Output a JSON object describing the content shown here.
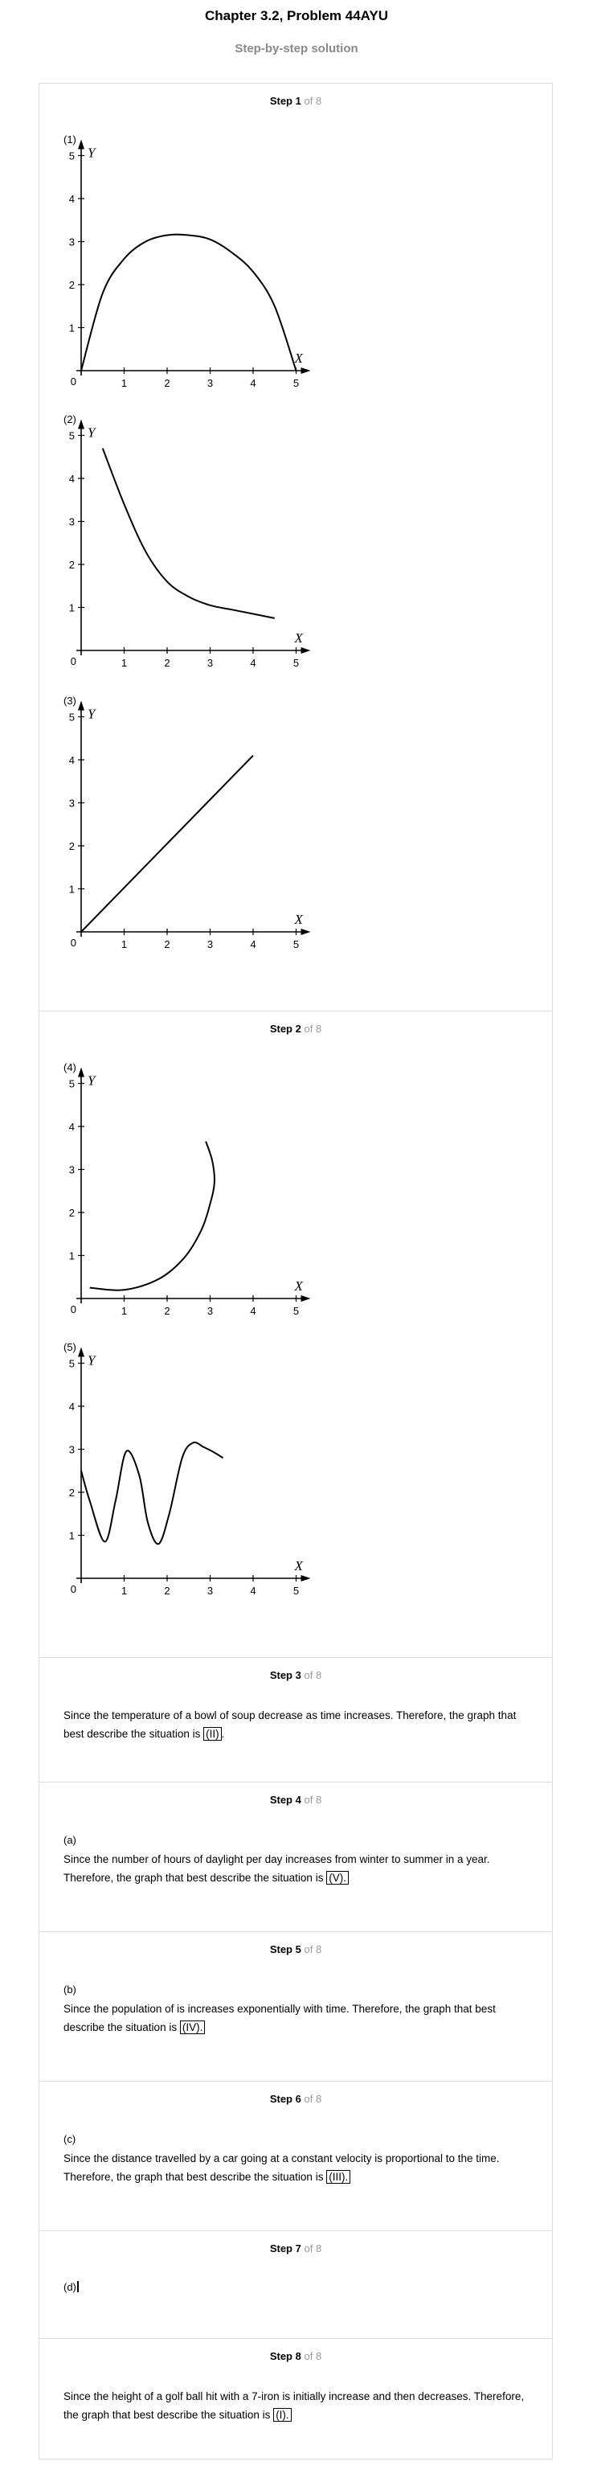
{
  "header": {
    "title": "Chapter 3.2, Problem 44AYU",
    "subtitle": "Step-by-step solution"
  },
  "step_word": "Step",
  "of_text": "of 8",
  "axis": {
    "x_label": "X",
    "y_label": "Y",
    "ticks": [
      "1",
      "2",
      "3",
      "4",
      "5"
    ],
    "origin": "0"
  },
  "steps": [
    {
      "num": "1",
      "graph_tags": [
        "(1)",
        "(2)",
        "(3)"
      ]
    },
    {
      "num": "2",
      "graph_tags": [
        "(4)",
        "(5)"
      ]
    },
    {
      "num": "3",
      "text": "Since the temperature of a bowl of soup decrease as time increases. Therefore, the graph that best describe the situation is",
      "answer": "(II)",
      "end": "."
    },
    {
      "num": "4",
      "tag": "(a)",
      "text": "Since the number of hours of daylight per day increases from winter to summer in a year. Therefore, the graph that best describe the situation is",
      "answer": "(V).",
      "end": ""
    },
    {
      "num": "5",
      "tag": "(b)",
      "text": "Since the population of is increases exponentially with time. Therefore, the graph that best describe the situation is",
      "answer": "(IV).",
      "end": ""
    },
    {
      "num": "6",
      "tag": "(c)",
      "text": "Since the distance travelled by a car going at a constant velocity is proportional to the time. Therefore, the graph that best describe the situation is",
      "answer": "(III).",
      "end": ""
    },
    {
      "num": "7",
      "tag": "(d)"
    },
    {
      "num": "8",
      "text": "Since the height of a golf ball hit with a 7-iron is initially increase and then decreases. Therefore, the graph that best describe the situation is",
      "answer": "(I).",
      "end": ""
    }
  ],
  "chart_data": [
    {
      "type": "line",
      "label": "(1)",
      "shape": "semicircle arch",
      "x": [
        0,
        0.5,
        1,
        1.5,
        2,
        2.5,
        3,
        3.5,
        4,
        4.5,
        5
      ],
      "y": [
        0,
        1.8,
        2.6,
        3.0,
        3.15,
        3.15,
        3.05,
        2.75,
        2.3,
        1.5,
        0
      ],
      "xlim": [
        0,
        5
      ],
      "ylim": [
        0,
        5
      ]
    },
    {
      "type": "line",
      "label": "(2)",
      "shape": "decreasing curve",
      "x": [
        0.5,
        1,
        1.5,
        2,
        2.5,
        3,
        3.5,
        4,
        4.5
      ],
      "y": [
        4.7,
        3.4,
        2.3,
        1.6,
        1.25,
        1.05,
        0.95,
        0.85,
        0.75
      ],
      "xlim": [
        0,
        5
      ],
      "ylim": [
        0,
        5
      ]
    },
    {
      "type": "line",
      "label": "(3)",
      "shape": "straight line through origin",
      "x": [
        0,
        4
      ],
      "y": [
        0,
        4.1
      ],
      "xlim": [
        0,
        5
      ],
      "ylim": [
        0,
        5
      ]
    },
    {
      "type": "line",
      "label": "(4)",
      "shape": "curve turning upward",
      "x": [
        0.2,
        1,
        1.8,
        2.4,
        2.8,
        3.0,
        3.1,
        3.05,
        2.9
      ],
      "y": [
        0.25,
        0.2,
        0.45,
        0.95,
        1.6,
        2.2,
        2.7,
        3.2,
        3.65
      ],
      "xlim": [
        0,
        5
      ],
      "ylim": [
        0,
        5
      ]
    },
    {
      "type": "line",
      "label": "(5)",
      "shape": "wave",
      "x": [
        0,
        0.2,
        0.55,
        0.8,
        1.05,
        1.35,
        1.55,
        1.8,
        2.05,
        2.35,
        2.6,
        2.85,
        3.05,
        3.3
      ],
      "y": [
        2.5,
        1.8,
        0.85,
        1.8,
        2.95,
        2.4,
        1.3,
        0.8,
        1.5,
        2.8,
        3.15,
        3.05,
        2.95,
        2.8
      ],
      "xlim": [
        0,
        5
      ],
      "ylim": [
        0,
        5
      ]
    }
  ]
}
